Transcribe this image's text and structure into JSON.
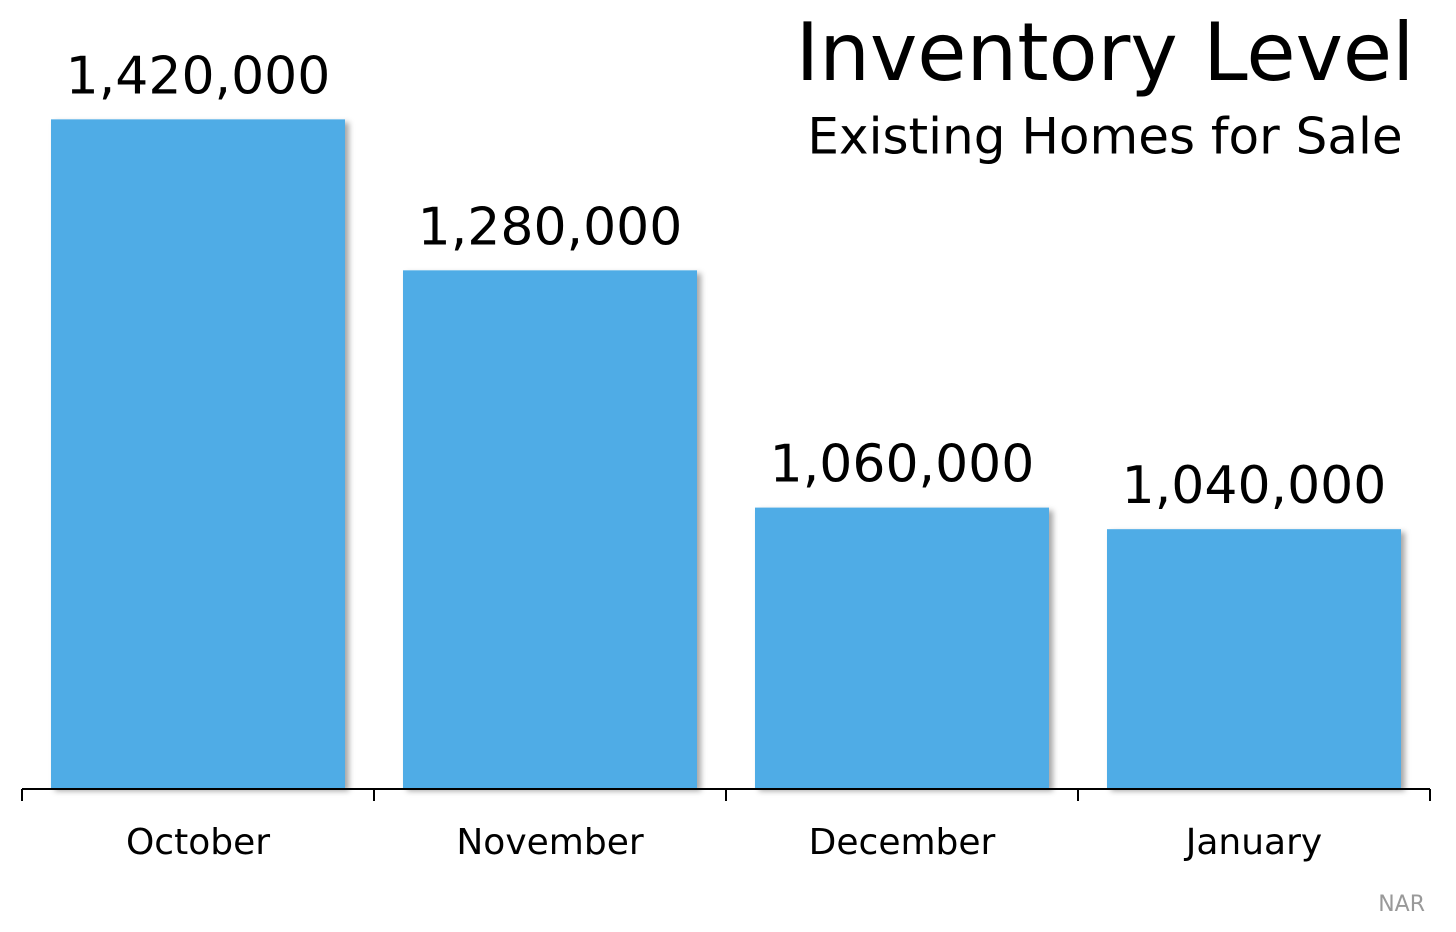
{
  "chart_data": {
    "type": "bar",
    "title": "Inventory Level",
    "subtitle": "Existing Homes for Sale",
    "categories": [
      "October",
      "November",
      "December",
      "January"
    ],
    "values": [
      1420000,
      1280000,
      1060000,
      1040000
    ],
    "value_labels": [
      "1,420,000",
      "1,280,000",
      "1,060,000",
      "1,040,000"
    ],
    "color": "#4facE6",
    "ylim": [
      800000,
      1450000
    ],
    "source": "NAR"
  }
}
